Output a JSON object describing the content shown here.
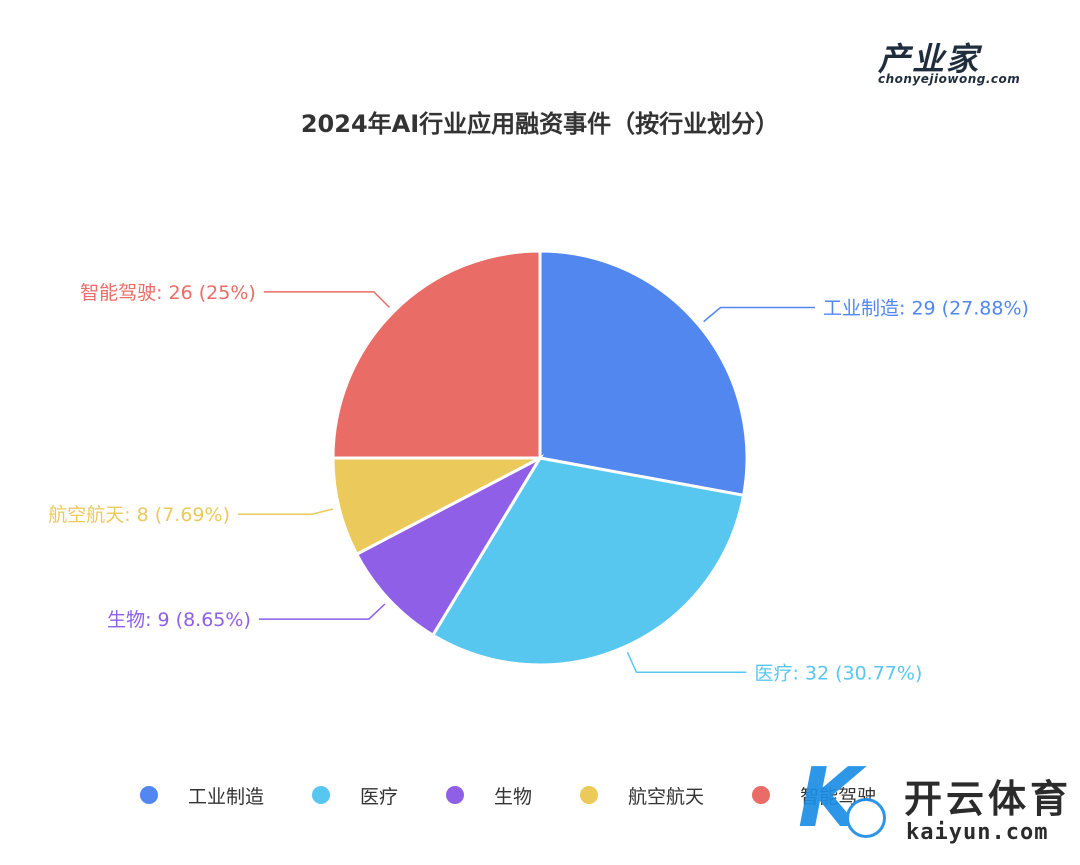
{
  "brand": {
    "name": "产业家",
    "site": "chonyejiowong.com"
  },
  "watermark": {
    "name_cn": "开云体育",
    "name_en": "kaiyun.com"
  },
  "chart_data": {
    "type": "pie",
    "title": "2024年AI行业应用融资事件（按行业划分）",
    "slices": [
      {
        "name": "工业制造",
        "value": 29,
        "percent": "27.88%",
        "color": "#5287f0",
        "label": "工业制造: 29 (27.88%)"
      },
      {
        "name": "医疗",
        "value": 32,
        "percent": "30.77%",
        "color": "#58c7f0",
        "label": "医疗: 32 (30.77%)"
      },
      {
        "name": "生物",
        "value": 9,
        "percent": "8.65%",
        "color": "#8f5fe8",
        "label": "生物: 9 (8.65%)"
      },
      {
        "name": "航空航天",
        "value": 8,
        "percent": "7.69%",
        "color": "#ecc95b",
        "label": "航空航天: 8 (7.69%)"
      },
      {
        "name": "智能驾驶",
        "value": 26,
        "percent": "25%",
        "color": "#e96c66",
        "label": "智能驾驶: 26 (25%)"
      }
    ],
    "legend": [
      "工业制造",
      "医疗",
      "生物",
      "航空航天",
      "智能驾驶"
    ],
    "legend_position": "bottom",
    "start_angle": "top",
    "direction": "clockwise"
  }
}
